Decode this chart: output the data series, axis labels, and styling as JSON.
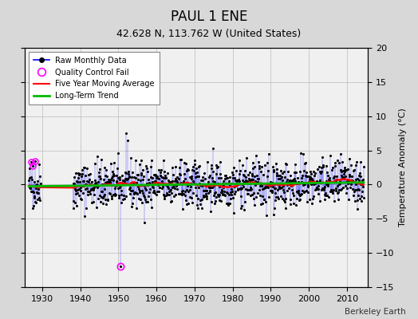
{
  "title": "PAUL 1 ENE",
  "subtitle": "42.628 N, 113.762 W (United States)",
  "credit": "Berkeley Earth",
  "ylabel": "Temperature Anomaly (°C)",
  "xlim": [
    1925.5,
    2015.5
  ],
  "ylim": [
    -15,
    20
  ],
  "yticks": [
    -15,
    -10,
    -5,
    0,
    5,
    10,
    15,
    20
  ],
  "xticks": [
    1930,
    1940,
    1950,
    1960,
    1970,
    1980,
    1990,
    2000,
    2010
  ],
  "bg_color": "#d8d8d8",
  "plot_bg_color": "#f0f0f0",
  "line_color": "#0000ff",
  "dot_color": "#000000",
  "qc_color": "#ff00ff",
  "moving_avg_color": "#ff0000",
  "trend_color": "#00bb00",
  "seed": 42,
  "year_start": 1926.5,
  "year_end": 2014.5,
  "gap_start": 1929.5,
  "gap_end": 1938.0,
  "noise_std": 1.7,
  "qc_year": 1950.5,
  "qc_value": -12.0,
  "big_spike_year": 1952.0,
  "big_spike_value": 7.5
}
